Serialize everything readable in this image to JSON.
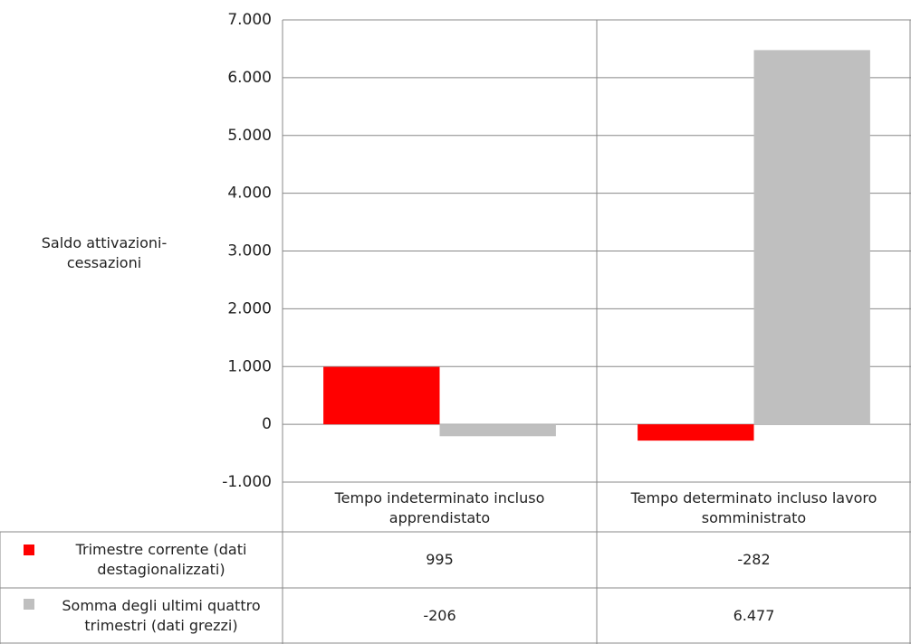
{
  "chart_data": {
    "type": "bar",
    "y_label": "Saldo attivazioni-cessazioni",
    "categories": [
      "Tempo indeterminato incluso apprendistato",
      "Tempo determinato incluso lavoro somministrato"
    ],
    "series": [
      {
        "name": "Trimestre corrente (dati destagionalizzati)",
        "color": "#ff0000",
        "values": [
          995,
          -282
        ],
        "value_labels": [
          "995",
          "-282"
        ]
      },
      {
        "name": "Somma degli ultimi quattro trimestri (dati grezzi)",
        "color": "#bfbfbf",
        "values": [
          -206,
          6477
        ],
        "value_labels": [
          "-206",
          "6.477"
        ]
      }
    ],
    "ylim": [
      -1000,
      7000
    ],
    "yticks": [
      {
        "value": -1000,
        "label": "-1.000"
      },
      0,
      {
        "value": 1000,
        "label": "1.000"
      },
      {
        "value": 2000,
        "label": "2.000"
      },
      {
        "value": 3000,
        "label": "3.000"
      },
      {
        "value": 4000,
        "label": "4.000"
      },
      {
        "value": 5000,
        "label": "5.000"
      },
      {
        "value": 6000,
        "label": "6.000"
      },
      {
        "value": 7000,
        "label": "7.000"
      }
    ],
    "grid": true
  }
}
